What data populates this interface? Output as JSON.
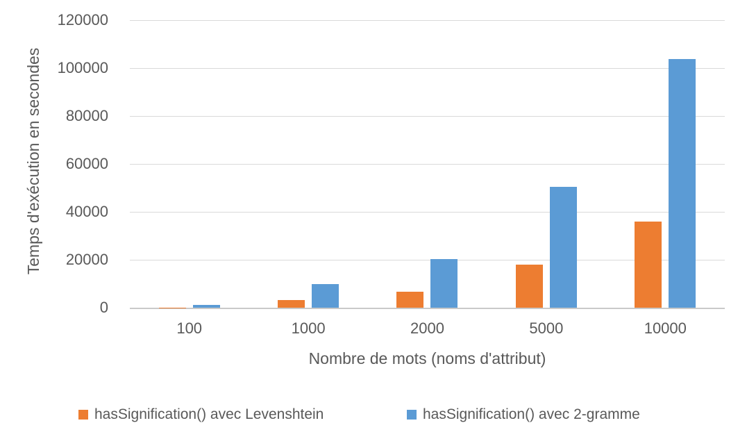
{
  "chart_data": {
    "type": "bar",
    "title": "",
    "categories": [
      "100",
      "1000",
      "2000",
      "5000",
      "10000"
    ],
    "series": [
      {
        "name": "hasSignification() avec Levenshtein",
        "color": "#ED7D31",
        "values": [
          100,
          3300,
          6800,
          18000,
          36000
        ]
      },
      {
        "name": "hasSignification() avec 2-gramme",
        "color": "#5B9BD5",
        "values": [
          1100,
          10000,
          20400,
          50500,
          103700
        ]
      }
    ],
    "xlabel": "Nombre de mots (noms d'attribut)",
    "ylabel": "Temps d'exécution en secondes",
    "ylim": [
      0,
      120000
    ],
    "yticks": [
      0,
      20000,
      40000,
      60000,
      80000,
      100000,
      120000
    ],
    "grid": true,
    "legend_position": "bottom"
  },
  "colors": {
    "text": "#595959",
    "gridline": "#D9D9D9",
    "axis_line": "#C9C9C9",
    "background": "#FFFFFF",
    "series_orange": "#ED7D31",
    "series_blue": "#5B9BD5"
  }
}
